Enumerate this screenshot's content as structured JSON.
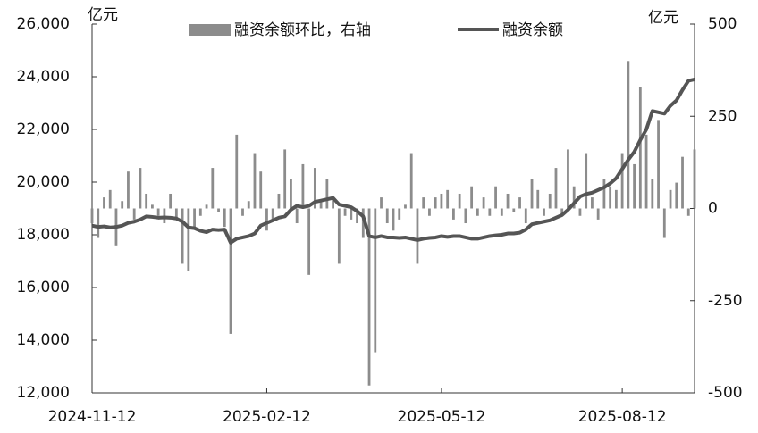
{
  "chart_data": {
    "type": "bar-line",
    "y_unit": "亿元",
    "y2_unit": "亿元",
    "categories": [
      "2024-11-12",
      null,
      null,
      null,
      null,
      null,
      null,
      null,
      null,
      null,
      null,
      null,
      null,
      null,
      null,
      null,
      null,
      null,
      null,
      null,
      null,
      null,
      null,
      null,
      null,
      null,
      null,
      null,
      null,
      "2025-02-12",
      null,
      null,
      null,
      null,
      null,
      null,
      null,
      null,
      null,
      null,
      null,
      null,
      null,
      null,
      null,
      null,
      null,
      null,
      null,
      null,
      null,
      null,
      null,
      null,
      null,
      null,
      null,
      null,
      "2025-05-12",
      null,
      null,
      null,
      null,
      null,
      null,
      null,
      null,
      null,
      null,
      null,
      null,
      null,
      null,
      null,
      null,
      null,
      null,
      null,
      null,
      null,
      null,
      null,
      null,
      null,
      null,
      null,
      null,
      null,
      "2025-08-12",
      null,
      null,
      null,
      null,
      null,
      null,
      null,
      null,
      null,
      null,
      null,
      null
    ],
    "series": [
      {
        "name": "融资余额环比，右轴",
        "kind": "bar",
        "axis": "y2",
        "color": "#8c8c8c",
        "values": [
          -40,
          -80,
          30,
          50,
          -100,
          20,
          100,
          -30,
          110,
          40,
          10,
          -20,
          -40,
          40,
          -30,
          -150,
          -170,
          -50,
          -20,
          10,
          110,
          -10,
          -50,
          -340,
          200,
          -20,
          20,
          150,
          100,
          -60,
          -30,
          40,
          160,
          80,
          -40,
          120,
          -180,
          110,
          20,
          80,
          30,
          -150,
          -20,
          -30,
          -40,
          -80,
          -480,
          -390,
          30,
          -40,
          -60,
          -30,
          10,
          150,
          -150,
          30,
          -20,
          30,
          40,
          50,
          -30,
          40,
          -40,
          60,
          -20,
          30,
          -20,
          60,
          -20,
          40,
          -10,
          30,
          -40,
          80,
          50,
          -20,
          40,
          110,
          -20,
          160,
          60,
          -20,
          150,
          30,
          -30,
          80,
          60,
          50,
          150,
          400,
          120,
          330,
          200,
          80,
          240,
          -80,
          50,
          70,
          140,
          -20,
          160
        ]
      },
      {
        "name": "融资余额",
        "kind": "line",
        "axis": "y",
        "color": "#555555",
        "values": [
          18350,
          18300,
          18320,
          18280,
          18300,
          18350,
          18450,
          18500,
          18580,
          18700,
          18680,
          18650,
          18660,
          18650,
          18620,
          18500,
          18280,
          18250,
          18150,
          18100,
          18200,
          18180,
          18200,
          17700,
          17850,
          17900,
          17950,
          18050,
          18350,
          18450,
          18550,
          18650,
          18700,
          18950,
          19100,
          19050,
          19100,
          19250,
          19300,
          19350,
          19400,
          19150,
          19100,
          19050,
          18900,
          18700,
          17950,
          17900,
          17950,
          17900,
          17900,
          17880,
          17900,
          17850,
          17800,
          17850,
          17880,
          17900,
          17950,
          17920,
          17950,
          17950,
          17900,
          17850,
          17850,
          17900,
          17950,
          17980,
          18000,
          18050,
          18050,
          18080,
          18200,
          18400,
          18450,
          18500,
          18550,
          18650,
          18750,
          18950,
          19200,
          19450,
          19550,
          19600,
          19700,
          19800,
          19950,
          20150,
          20500,
          20850,
          21150,
          21600,
          22000,
          22700,
          22650,
          22600,
          22900,
          23100,
          23500,
          23850,
          23900
        ]
      }
    ],
    "ylim": [
      12000,
      26000
    ],
    "yticks": [
      {
        "value": 12000,
        "label": "12,000"
      },
      {
        "value": 14000,
        "label": "14,000"
      },
      {
        "value": 16000,
        "label": "16,000"
      },
      {
        "value": 18000,
        "label": "18,000"
      },
      {
        "value": 20000,
        "label": "20,000"
      },
      {
        "value": 22000,
        "label": "22,000"
      },
      {
        "value": 24000,
        "label": "24,000"
      },
      {
        "value": 26000,
        "label": "26,000"
      }
    ],
    "y2lim": [
      -500,
      500
    ],
    "y2ticks": [
      -500,
      -250,
      0,
      250,
      500
    ],
    "grid": false,
    "legend": "top"
  }
}
